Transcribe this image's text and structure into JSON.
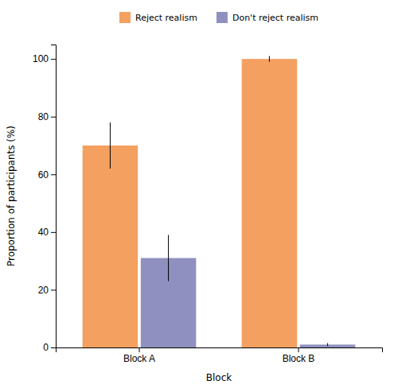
{
  "chart_data": {
    "type": "bar",
    "categories": [
      "Block A",
      "Block B"
    ],
    "series": [
      {
        "name": "Reject realism",
        "color": "#F4A060",
        "values": [
          70,
          100
        ],
        "errors": [
          8,
          1
        ]
      },
      {
        "name": "Don't reject realism",
        "color": "#9090C0",
        "values": [
          31,
          1
        ],
        "errors": [
          8,
          0.5
        ]
      }
    ],
    "xlabel": "Block",
    "ylabel": "Proportion of participants (%)",
    "ylim": [
      0,
      105
    ],
    "yticks": [
      0,
      20,
      40,
      60,
      80,
      100
    ],
    "grid": false,
    "legend": "top"
  }
}
